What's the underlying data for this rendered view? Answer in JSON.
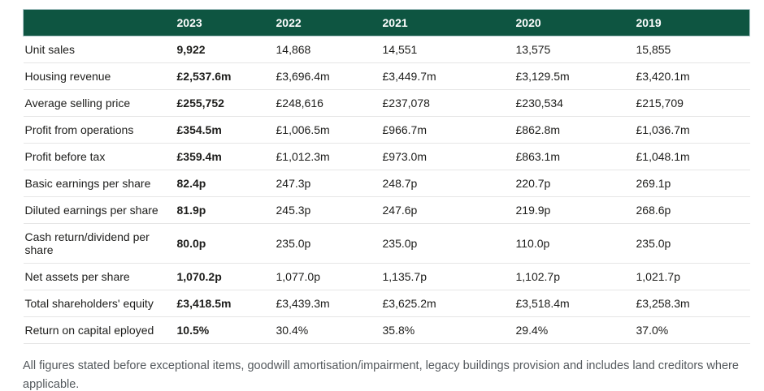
{
  "chart_data": {
    "type": "table",
    "title": "",
    "columns": [
      "",
      "2023",
      "2022",
      "2021",
      "2020",
      "2019"
    ],
    "rows": [
      {
        "label": "Unit sales",
        "values": [
          "9,922",
          "14,868",
          "14,551",
          "13,575",
          "15,855"
        ]
      },
      {
        "label": "Housing revenue",
        "values": [
          "£2,537.6m",
          "£3,696.4m",
          "£3,449.7m",
          "£3,129.5m",
          "£3,420.1m"
        ]
      },
      {
        "label": "Average selling price",
        "values": [
          "£255,752",
          "£248,616",
          "£237,078",
          "£230,534",
          "£215,709"
        ]
      },
      {
        "label": "Profit from operations",
        "values": [
          "£354.5m",
          "£1,006.5m",
          "£966.7m",
          "£862.8m",
          "£1,036.7m"
        ]
      },
      {
        "label": "Profit before tax",
        "values": [
          "£359.4m",
          "£1,012.3m",
          "£973.0m",
          "£863.1m",
          "£1,048.1m"
        ]
      },
      {
        "label": "Basic earnings per share",
        "values": [
          "82.4p",
          "247.3p",
          "248.7p",
          "220.7p",
          "269.1p"
        ]
      },
      {
        "label": "Diluted earnings per share",
        "values": [
          "81.9p",
          "245.3p",
          "247.6p",
          "219.9p",
          "268.6p"
        ]
      },
      {
        "label": "Cash return/dividend per share",
        "values": [
          "80.0p",
          "235.0p",
          "235.0p",
          "110.0p",
          "235.0p"
        ]
      },
      {
        "label": "Net assets per share",
        "values": [
          "1,070.2p",
          "1,077.0p",
          "1,135.7p",
          "1,102.7p",
          "1,021.7p"
        ]
      },
      {
        "label": "Total shareholders' equity",
        "values": [
          "£3,418.5m",
          "£3,439.3m",
          "£3,625.2m",
          "£3,518.4m",
          "£3,258.3m"
        ]
      },
      {
        "label": "Return on capital eployed",
        "values": [
          "10.5%",
          "30.4%",
          "35.8%",
          "29.4%",
          "37.0%"
        ]
      }
    ],
    "legend": "none",
    "grid": "horizontal-row-separators"
  },
  "footnote": "All figures stated before exceptional items, goodwill amortisation/impairment, legacy buildings provision and includes land creditors where applicable.",
  "colors": {
    "header_bg": "#0e5541",
    "header_text": "#ffffff",
    "header_border": "#b5cdd0",
    "row_separator": "#e6e6e6",
    "body_text": "#1d1d1b",
    "footnote_text": "#54595d"
  }
}
